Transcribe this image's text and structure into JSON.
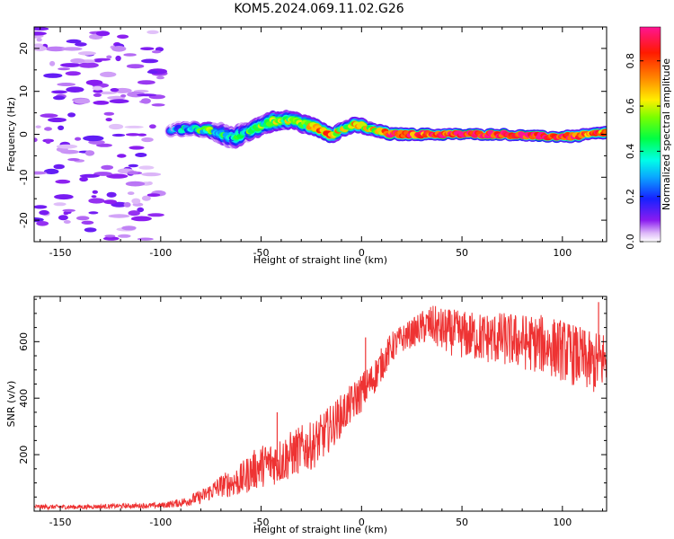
{
  "title": "KOM5.2024.069.11.02.G26",
  "chart_data": [
    {
      "type": "heatmap",
      "xlabel": "Height of straight line (km)",
      "ylabel": "Frequency (Hz)",
      "xlim": [
        -163,
        122
      ],
      "ylim": [
        -25,
        25
      ],
      "x_ticks": [
        -150,
        -100,
        -50,
        0,
        50,
        100
      ],
      "y_ticks": [
        -20,
        -10,
        0,
        10,
        20
      ],
      "colorbar": {
        "label": "Normalized spectral amplitude",
        "range": [
          0.0,
          0.95
        ],
        "ticks": [
          0.0,
          0.2,
          0.4,
          0.6,
          0.8
        ],
        "tick_labels": [
          "0.0",
          "0.2",
          "0.4",
          "0.6",
          "0.8"
        ],
        "colormap": "gist_ncar-like (white to violet to blue to cyan to green to yellow to red to magenta)"
      },
      "noise_region": {
        "x_range": [
          -163,
          -100
        ],
        "freq_range": [
          -25,
          25
        ],
        "amplitude": 0.1
      },
      "signal_ridge": [
        {
          "x": -95,
          "freq": 1,
          "amp": 0.2,
          "width": 1.5
        },
        {
          "x": -85,
          "freq": 1.5,
          "amp": 0.35,
          "width": 1.6
        },
        {
          "x": -78,
          "freq": 1,
          "amp": 0.45,
          "width": 1.5
        },
        {
          "x": -70,
          "freq": 0,
          "amp": 0.4,
          "width": 2.5
        },
        {
          "x": -65,
          "freq": -1,
          "amp": 0.3,
          "width": 2.5
        },
        {
          "x": -55,
          "freq": 1,
          "amp": 0.4,
          "width": 2.2
        },
        {
          "x": -50,
          "freq": 2,
          "amp": 0.45,
          "width": 2.2
        },
        {
          "x": -45,
          "freq": 3,
          "amp": 0.5,
          "width": 2.2
        },
        {
          "x": -40,
          "freq": 3,
          "amp": 0.55,
          "width": 2.2
        },
        {
          "x": -35,
          "freq": 3.5,
          "amp": 0.5,
          "width": 2
        },
        {
          "x": -30,
          "freq": 2.5,
          "amp": 0.55,
          "width": 2
        },
        {
          "x": -25,
          "freq": 2,
          "amp": 0.6,
          "width": 1.8
        },
        {
          "x": -20,
          "freq": 1,
          "amp": 0.75,
          "width": 1.8
        },
        {
          "x": -15,
          "freq": 0,
          "amp": 0.7,
          "width": 1.8
        },
        {
          "x": -10,
          "freq": 1,
          "amp": 0.55,
          "width": 1.7
        },
        {
          "x": -5,
          "freq": 2,
          "amp": 0.6,
          "width": 1.7
        },
        {
          "x": 0,
          "freq": 2,
          "amp": 0.65,
          "width": 1.6
        },
        {
          "x": 5,
          "freq": 1,
          "amp": 0.6,
          "width": 1.5
        },
        {
          "x": 10,
          "freq": 0.5,
          "amp": 0.65,
          "width": 1.4
        },
        {
          "x": 15,
          "freq": 0,
          "amp": 0.85,
          "width": 1.3
        },
        {
          "x": 25,
          "freq": 0,
          "amp": 0.8,
          "width": 1.2
        },
        {
          "x": 35,
          "freq": 0,
          "amp": 0.85,
          "width": 1.2
        },
        {
          "x": 50,
          "freq": 0,
          "amp": 0.9,
          "width": 1.1
        },
        {
          "x": 70,
          "freq": 0,
          "amp": 0.9,
          "width": 1.1
        },
        {
          "x": 90,
          "freq": -0.5,
          "amp": 0.88,
          "width": 1.1
        },
        {
          "x": 105,
          "freq": -0.5,
          "amp": 0.85,
          "width": 1.2
        },
        {
          "x": 115,
          "freq": 0,
          "amp": 0.8,
          "width": 1.3
        },
        {
          "x": 122,
          "freq": 0.5,
          "amp": 0.75,
          "width": 1.3
        }
      ]
    },
    {
      "type": "line",
      "xlabel": "Height of straight line (km)",
      "ylabel": "SNR (v/v)",
      "xlim": [
        -163,
        122
      ],
      "ylim": [
        0,
        760
      ],
      "x_ticks": [
        -150,
        -100,
        -50,
        0,
        50,
        100
      ],
      "y_ticks": [
        200,
        400,
        600
      ],
      "series": [
        {
          "color": "#ee3333",
          "x": [
            -163,
            -140,
            -120,
            -100,
            -90,
            -80,
            -70,
            -60,
            -55,
            -50,
            -45,
            -40,
            -35,
            -30,
            -25,
            -20,
            -15,
            -10,
            -5,
            0,
            5,
            10,
            15,
            20,
            25,
            30,
            35,
            40,
            50,
            60,
            70,
            80,
            90,
            100,
            110,
            115,
            122
          ],
          "y": [
            15,
            15,
            18,
            20,
            30,
            50,
            90,
            110,
            140,
            160,
            170,
            180,
            200,
            220,
            230,
            260,
            300,
            340,
            380,
            420,
            460,
            520,
            580,
            610,
            630,
            650,
            660,
            640,
            625,
            615,
            610,
            600,
            590,
            570,
            540,
            520,
            540
          ],
          "noise_amplitude": [
            8,
            8,
            8,
            10,
            15,
            25,
            40,
            60,
            70,
            75,
            80,
            85,
            85,
            85,
            85,
            85,
            80,
            75,
            70,
            70,
            65,
            60,
            55,
            50,
            50,
            60,
            70,
            80,
            85,
            90,
            95,
            100,
            105,
            110,
            110,
            110,
            110
          ]
        }
      ],
      "spikes": [
        {
          "x": -42,
          "y": 350
        },
        {
          "x": 2,
          "y": 615
        },
        {
          "x": 99,
          "y": 615
        },
        {
          "x": 118,
          "y": 740
        }
      ]
    }
  ]
}
